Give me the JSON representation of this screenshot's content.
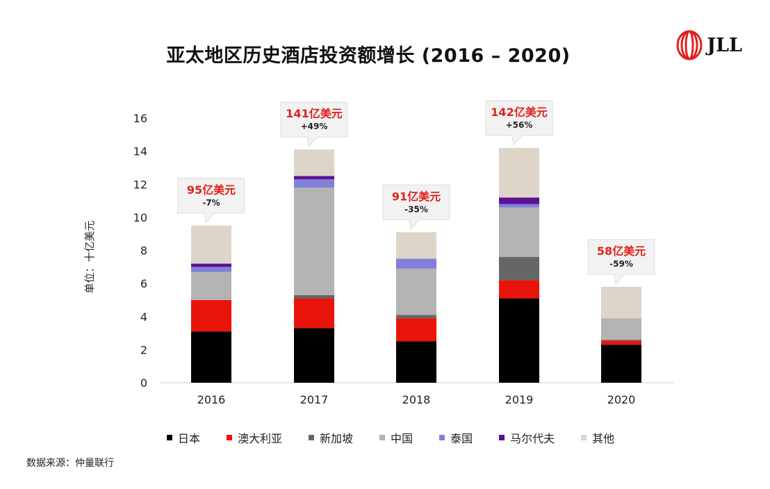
{
  "title": "亚太地区历史酒店投资额增长 (2016 – 2020)",
  "logo": {
    "text": "JLL",
    "icon": "jll-helix-icon"
  },
  "source": "数据来源：仲量联行",
  "chart_data": {
    "type": "bar",
    "stacked": true,
    "title": "亚太地区历史酒店投资额增长 (2016 – 2020)",
    "xlabel": "",
    "ylabel": "单位：十亿美元",
    "ylim": [
      0,
      16
    ],
    "yticks": [
      0,
      2,
      4,
      6,
      8,
      10,
      12,
      14,
      16
    ],
    "grid": false,
    "legend_position": "bottom",
    "categories": [
      "2016",
      "2017",
      "2018",
      "2019",
      "2020"
    ],
    "series": [
      {
        "name": "日本",
        "color": "#000000",
        "values": [
          3.1,
          3.3,
          2.5,
          5.1,
          2.3
        ]
      },
      {
        "name": "澳大利亚",
        "color": "#e8140c",
        "values": [
          1.9,
          1.8,
          1.4,
          1.1,
          0.25
        ]
      },
      {
        "name": "新加坡",
        "color": "#666666",
        "values": [
          0.0,
          0.2,
          0.2,
          1.4,
          0.05
        ]
      },
      {
        "name": "中国",
        "color": "#b3b3b3",
        "values": [
          1.7,
          6.5,
          2.8,
          3.0,
          1.3
        ]
      },
      {
        "name": "泰国",
        "color": "#8080d8",
        "values": [
          0.3,
          0.5,
          0.6,
          0.2,
          0.0
        ]
      },
      {
        "name": "马尔代夫",
        "color": "#5b1094",
        "values": [
          0.2,
          0.2,
          0.0,
          0.4,
          0.0
        ]
      },
      {
        "name": "其他",
        "color": "#ddd5c7",
        "values": [
          2.3,
          1.6,
          1.6,
          3.0,
          1.9
        ]
      }
    ],
    "totals": [
      9.5,
      14.1,
      9.1,
      14.2,
      5.8
    ],
    "annotations": [
      {
        "category": "2016",
        "label": "95亿美元",
        "change": "-7%"
      },
      {
        "category": "2017",
        "label": "141亿美元",
        "change": "+49%"
      },
      {
        "category": "2018",
        "label": "91亿美元",
        "change": "-35%"
      },
      {
        "category": "2019",
        "label": "142亿美元",
        "change": "+56%"
      },
      {
        "category": "2020",
        "label": "58亿美元",
        "change": "-59%"
      }
    ]
  }
}
